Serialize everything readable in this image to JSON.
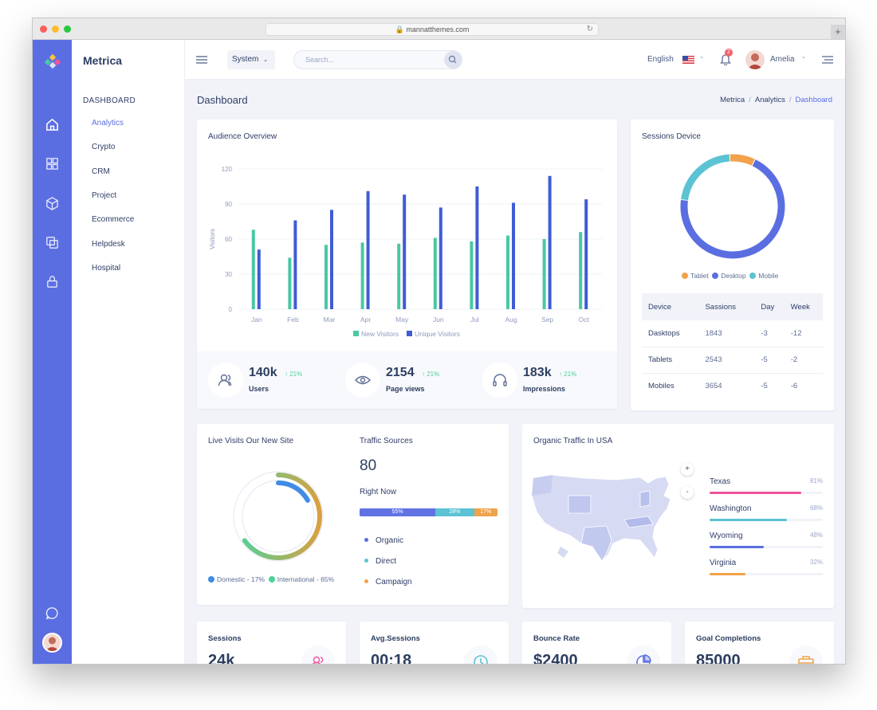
{
  "browser": {
    "url": "mannatthemes.com"
  },
  "sidebar": {
    "brand": "Metrica",
    "section_title": "DASHBOARD",
    "items": [
      {
        "label": "Analytics",
        "active": true
      },
      {
        "label": "Crypto"
      },
      {
        "label": "CRM"
      },
      {
        "label": "Project"
      },
      {
        "label": "Ecommerce"
      },
      {
        "label": "Helpdesk"
      },
      {
        "label": "Hospital"
      }
    ]
  },
  "topbar": {
    "system_label": "System",
    "search_placeholder": "Search...",
    "language": "English",
    "notification_count": "2",
    "user_name": "Amelia"
  },
  "page": {
    "title": "Dashboard",
    "breadcrumb": [
      "Metrica",
      "Analytics",
      "Dashboard"
    ]
  },
  "audience": {
    "title": "Audience Overview",
    "stats": [
      {
        "value": "140k",
        "change": "21%",
        "label": "Users",
        "icon": "users-icon"
      },
      {
        "value": "2154",
        "change": "21%",
        "label": "Page views",
        "icon": "eye-icon"
      },
      {
        "value": "183k",
        "change": "21%",
        "label": "Impressions",
        "icon": "headphones-icon"
      }
    ]
  },
  "chart_data": [
    {
      "type": "bar",
      "title": "Audience Overview",
      "ylabel": "Visitors",
      "categories": [
        "Jan",
        "Feb",
        "Mar",
        "Apr",
        "May",
        "Jun",
        "Jul",
        "Aug",
        "Sep",
        "Oct"
      ],
      "series": [
        {
          "name": "New Visitors",
          "color": "#4ac7a5",
          "values": [
            68,
            44,
            55,
            57,
            56,
            61,
            58,
            63,
            60,
            66
          ]
        },
        {
          "name": "Unique Visitors",
          "color": "#3f5cd5",
          "values": [
            51,
            76,
            85,
            101,
            98,
            87,
            105,
            91,
            114,
            94
          ]
        }
      ],
      "ylim": [
        0,
        120
      ],
      "yticks": [
        0,
        30,
        60,
        90,
        120
      ],
      "grid": true,
      "legend": "bottom"
    },
    {
      "type": "pie",
      "title": "Sessions Device",
      "categories": [
        "Tablet",
        "Desktop",
        "Mobile"
      ],
      "colors": [
        "#f1a24b",
        "#5b6ee1",
        "#5bc3d3"
      ],
      "values": [
        8,
        70,
        22
      ],
      "legend": "bottom"
    }
  ],
  "sessions_device": {
    "title": "Sessions Device",
    "legend": [
      "Tablet",
      "Desktop",
      "Mobile"
    ],
    "table": {
      "headers": [
        "Device",
        "Sassions",
        "Day",
        "Week"
      ],
      "rows": [
        [
          "Dasktops",
          "1843",
          "-3",
          "-12"
        ],
        [
          "Tablets",
          "2543",
          "-5",
          "-2"
        ],
        [
          "Mobiles",
          "3654",
          "-5",
          "-6"
        ]
      ]
    }
  },
  "live_visits": {
    "title": "Live Visits Our New Site",
    "legend_domestic": "Domestic - 17%",
    "legend_international": "International - 65%",
    "domestic_pct": 17,
    "international_pct": 65
  },
  "traffic_sources": {
    "title": "Traffic Sources",
    "value": "80",
    "subtitle": "Right Now",
    "segments": [
      {
        "label": "55%",
        "value": 55,
        "color": "#6173e3"
      },
      {
        "label": "28%",
        "value": 28,
        "color": "#5bc3d3"
      },
      {
        "label": "17%",
        "value": 17,
        "color": "#f1a24b"
      }
    ],
    "sources": [
      {
        "label": "Organic",
        "color": "#5b6ee1"
      },
      {
        "label": "Direct",
        "color": "#5bc3d3"
      },
      {
        "label": "Campaign",
        "color": "#f1a24b"
      }
    ]
  },
  "organic": {
    "title": "Organic Traffic In USA",
    "zoom_in": "+",
    "zoom_out": "-",
    "states": [
      {
        "name": "Texas",
        "pct_label": "81%",
        "value": 81,
        "color": "#f0539b"
      },
      {
        "name": "Washington",
        "pct_label": "68%",
        "value": 68,
        "color": "#5bc3d3"
      },
      {
        "name": "Wyoming",
        "pct_label": "48%",
        "value": 48,
        "color": "#5b6ee1"
      },
      {
        "name": "Virginia",
        "pct_label": "32%",
        "value": 32,
        "color": "#f1a24b"
      }
    ]
  },
  "kpis": [
    {
      "title": "Sessions",
      "value": "24k",
      "icon": "users-icon",
      "color": "#f0539b"
    },
    {
      "title": "Avg.Sessions",
      "value": "00:18",
      "icon": "clock-icon",
      "color": "#5bc3d3"
    },
    {
      "title": "Bounce Rate",
      "value": "$2400",
      "icon": "pie-chart-icon",
      "color": "#5b6ee1"
    },
    {
      "title": "Goal Completions",
      "value": "85000",
      "icon": "briefcase-icon",
      "color": "#f1a24b"
    }
  ]
}
